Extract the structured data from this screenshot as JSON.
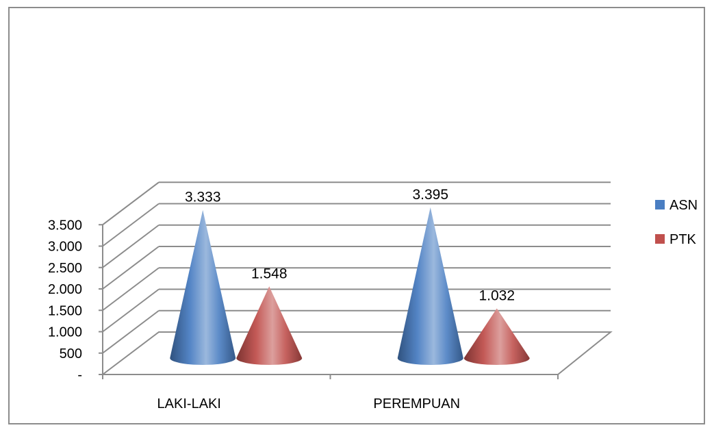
{
  "chart_data": {
    "type": "bar",
    "shape": "3d-cone",
    "title": "",
    "xlabel": "",
    "ylabel": "",
    "categories": [
      "LAKI-LAKI",
      "PEREMPUAN"
    ],
    "series": [
      {
        "name": "ASN",
        "values": [
          3333,
          3395
        ],
        "labels": [
          "3.333",
          "3.395"
        ],
        "color": "#4a7ec2"
      },
      {
        "name": "PTK",
        "values": [
          1548,
          1032
        ],
        "labels": [
          "1.548",
          "1.032"
        ],
        "color": "#c0504d"
      }
    ],
    "ylim": [
      0,
      3500
    ],
    "yticks": [
      {
        "value": 0,
        "label": "-"
      },
      {
        "value": 500,
        "label": "500"
      },
      {
        "value": 1000,
        "label": "1.000"
      },
      {
        "value": 1500,
        "label": "1.500"
      },
      {
        "value": 2000,
        "label": "2.000"
      },
      {
        "value": 2500,
        "label": "2.500"
      },
      {
        "value": 3000,
        "label": "3.000"
      },
      {
        "value": 3500,
        "label": "3.500"
      }
    ],
    "grid": true,
    "legend": "right"
  }
}
